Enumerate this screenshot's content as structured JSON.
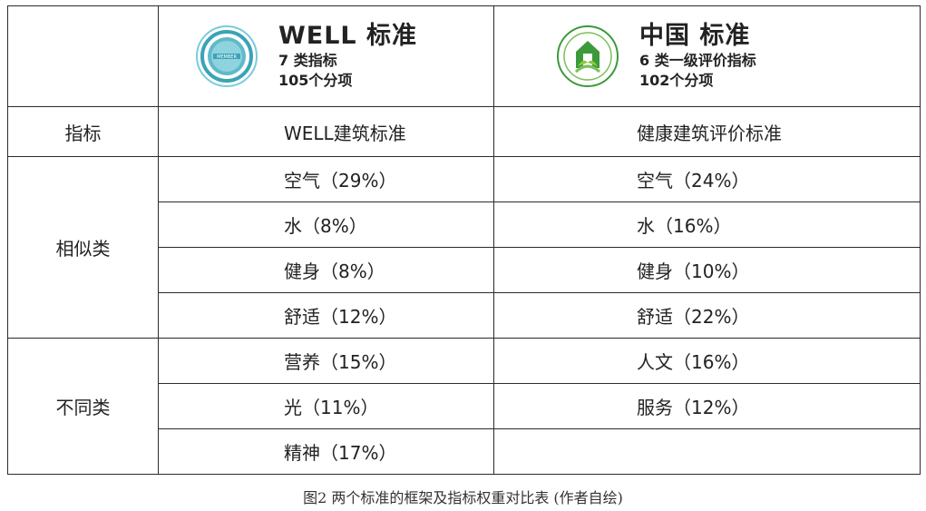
{
  "header": {
    "well": {
      "title": "WELL 标准",
      "sub1": "7 类指标",
      "sub2": "105个分项",
      "logo": "WELL member seal (blue circle)"
    },
    "china": {
      "title": "中国 标准",
      "sub1": "6 类一级评价指标",
      "sub2": "102个分项",
      "logo": "Healthy Building Label seal (green circle)"
    }
  },
  "label_row": {
    "left": "指标",
    "well": "WELL建筑标准",
    "china": "健康建筑评价标准"
  },
  "groups": [
    {
      "label": "相似类",
      "rows": [
        {
          "well": "空气（29%）",
          "china": "空气（24%）"
        },
        {
          "well": "水（8%）",
          "china": "水（16%）"
        },
        {
          "well": "健身（8%）",
          "china": "健身（10%）"
        },
        {
          "well": "舒适（12%）",
          "china": "舒适（22%）"
        }
      ]
    },
    {
      "label": "不同类",
      "rows": [
        {
          "well": "营养（15%）",
          "china": "人文（16%）"
        },
        {
          "well": "光（11%）",
          "china": "服务（12%）"
        },
        {
          "well": "精神（17%）",
          "china": ""
        }
      ]
    }
  ],
  "caption": "图2 两个标准的框架及指标权重对比表 (作者自绘)",
  "colors": {
    "border": "#2b2b2b",
    "well_logo": "#3aa3b8",
    "china_logo": "#3c9a3a"
  }
}
